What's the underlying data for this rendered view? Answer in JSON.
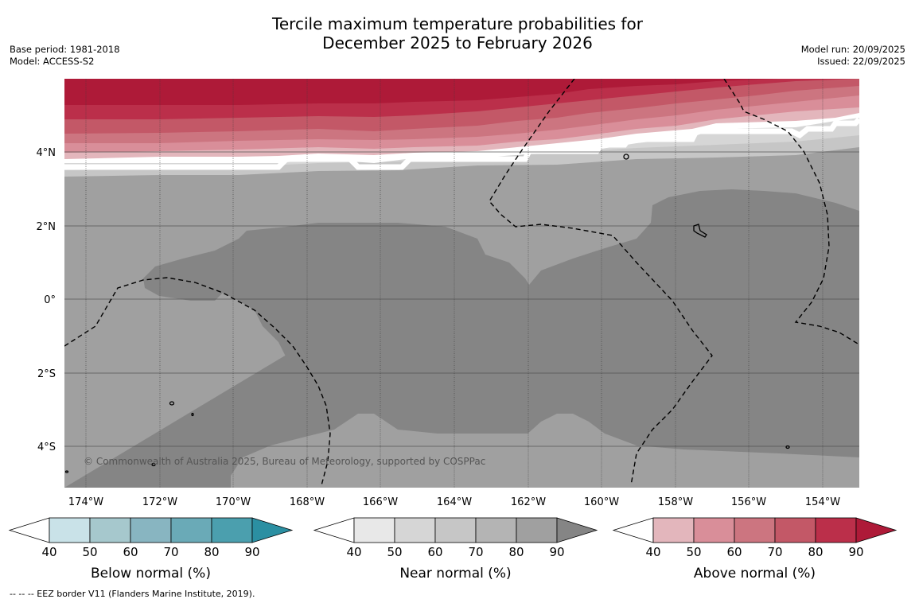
{
  "title_line1": "Tercile maximum temperature probabilities for",
  "title_line2": "December 2025 to February 2026",
  "base_period": "Base period: 1981-2018",
  "model": "Model: ACCESS-S2",
  "model_run": "Model run: 20/09/2025",
  "issued": "Issued: 22/09/2025",
  "copyright": "© Commonwealth of Australia 2025, Bureau of Meteorology, supported by COSPPac",
  "footer": "--  --  -- EEZ border V11 (Flanders Marine Institute, 2019).",
  "map": {
    "lon_ticks": [
      "174°W",
      "172°W",
      "170°W",
      "168°W",
      "166°W",
      "164°W",
      "162°W",
      "160°W",
      "158°W",
      "156°W",
      "154°W"
    ],
    "lat_ticks": [
      "4°N",
      "2°N",
      "0°",
      "2°S",
      "4°S"
    ]
  },
  "legends": [
    {
      "label": "Below normal (%)",
      "ticks": [
        "40",
        "50",
        "60",
        "70",
        "80",
        "90"
      ],
      "colors": [
        "#ffffff",
        "#c9e2e8",
        "#a6c8cd",
        "#88b5c1",
        "#6aaab7",
        "#4b9fae",
        "#2b8fa2"
      ]
    },
    {
      "label": "Near normal (%)",
      "ticks": [
        "40",
        "50",
        "60",
        "70",
        "80",
        "90"
      ],
      "colors": [
        "#ffffff",
        "#e8e8e8",
        "#d6d6d6",
        "#c6c6c6",
        "#b4b4b4",
        "#a0a0a0",
        "#858585"
      ]
    },
    {
      "label": "Above normal (%)",
      "ticks": [
        "40",
        "50",
        "60",
        "70",
        "80",
        "90"
      ],
      "colors": [
        "#ffffff",
        "#e3b6bc",
        "#d98e99",
        "#cc7580",
        "#c35867",
        "#bb2f4a",
        "#ae1a38"
      ]
    }
  ]
}
